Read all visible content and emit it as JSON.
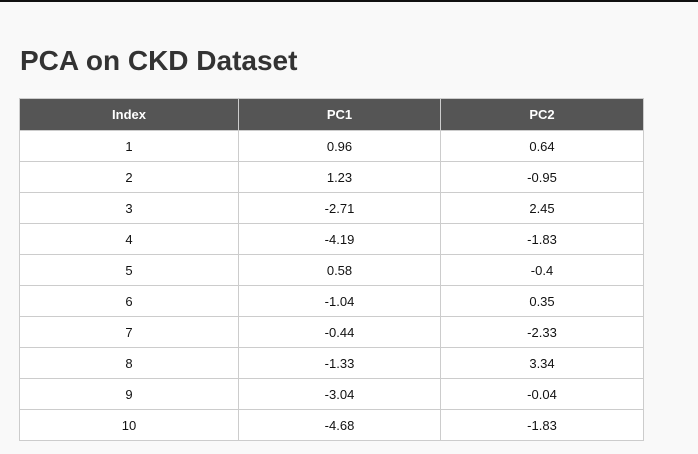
{
  "page": {
    "title": "PCA on CKD Dataset"
  },
  "table": {
    "headers": [
      "Index",
      "PC1",
      "PC2"
    ],
    "rows": [
      [
        "1",
        "0.96",
        "0.64"
      ],
      [
        "2",
        "1.23",
        "-0.95"
      ],
      [
        "3",
        "-2.71",
        "2.45"
      ],
      [
        "4",
        "-4.19",
        "-1.83"
      ],
      [
        "5",
        "0.58",
        "-0.4"
      ],
      [
        "6",
        "-1.04",
        "0.35"
      ],
      [
        "7",
        "-0.44",
        "-2.33"
      ],
      [
        "8",
        "-1.33",
        "3.34"
      ],
      [
        "9",
        "-3.04",
        "-0.04"
      ],
      [
        "10",
        "-4.68",
        "-1.83"
      ]
    ]
  },
  "colors": {
    "header_bg": "#555555",
    "header_text": "#ffffff",
    "title_text": "#333333",
    "page_bg": "#f9f9f9",
    "border": "#cccccc"
  }
}
